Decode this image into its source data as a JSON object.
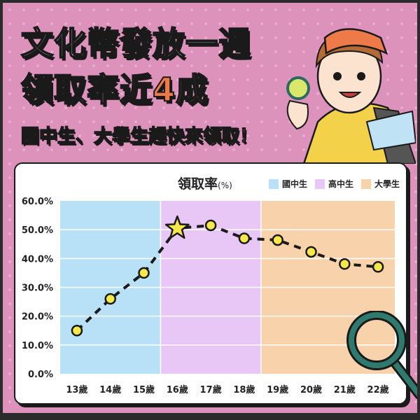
{
  "headline": {
    "line1": "文化幣發放一週",
    "line2_prefix": "領取率",
    "line2_highlight": "近4成"
  },
  "subheadline": "國中生、大學生趕快來領取！",
  "colors": {
    "background": "#dc92bb",
    "highlight": "#ee7a4a",
    "subheadline": "#f7dc3c",
    "marker": "#f7e84a"
  },
  "chart_data": {
    "type": "line",
    "title": "領取率",
    "title_unit": "(%)",
    "categories": [
      "13歲",
      "14歲",
      "15歲",
      "16歲",
      "17歲",
      "18歲",
      "19歲",
      "20歲",
      "21歲",
      "22歲"
    ],
    "values": [
      15.0,
      26.0,
      35.0,
      50.5,
      51.5,
      47.0,
      46.4,
      42.3,
      38.1,
      37.1
    ],
    "highlight_point": "16歲",
    "ylim": [
      0,
      60
    ],
    "yticks": [
      "0.0%",
      "10.0%",
      "20.0%",
      "30.0%",
      "40.0%",
      "50.0%",
      "60.0%"
    ],
    "line_style": "dashed",
    "grid": true,
    "legend_position": "top-right",
    "bands": [
      {
        "name": "國中生",
        "from": "13歲",
        "to": "15歲",
        "color": "#b8e0f6"
      },
      {
        "name": "高中生",
        "from": "16歲",
        "to": "18歲",
        "color": "#e8c6f6"
      },
      {
        "name": "大學生",
        "from": "19歲",
        "to": "22歲",
        "color": "#f7d2ab"
      }
    ]
  }
}
